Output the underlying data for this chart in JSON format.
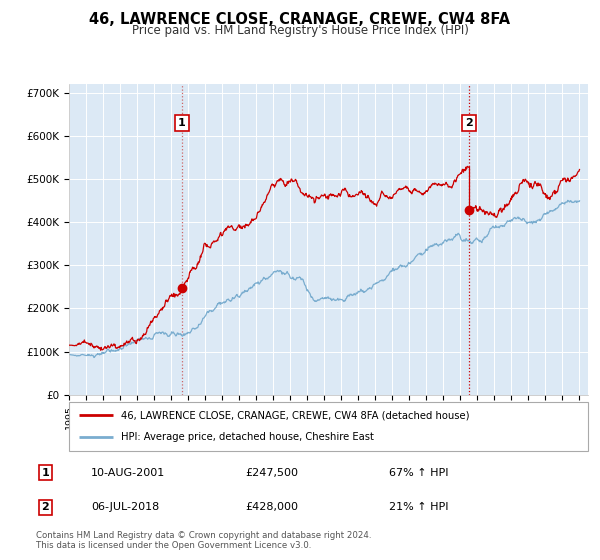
{
  "title": "46, LAWRENCE CLOSE, CRANAGE, CREWE, CW4 8FA",
  "subtitle": "Price paid vs. HM Land Registry's House Price Index (HPI)",
  "legend_line1": "46, LAWRENCE CLOSE, CRANAGE, CREWE, CW4 8FA (detached house)",
  "legend_line2": "HPI: Average price, detached house, Cheshire East",
  "transaction1_date": "10-AUG-2001",
  "transaction1_price": "£247,500",
  "transaction1_hpi": "67% ↑ HPI",
  "transaction2_date": "06-JUL-2018",
  "transaction2_price": "£428,000",
  "transaction2_hpi": "21% ↑ HPI",
  "footer1": "Contains HM Land Registry data © Crown copyright and database right 2024.",
  "footer2": "This data is licensed under the Open Government Licence v3.0.",
  "red_color": "#cc0000",
  "blue_color": "#7aadcf",
  "grid_color": "#ffffff",
  "background_color": "#dce9f5",
  "transaction1_x": 2001.62,
  "transaction2_x": 2018.51,
  "transaction1_y": 247500,
  "transaction2_y": 428000,
  "ylim_max": 720000,
  "yticks": [
    0,
    100000,
    200000,
    300000,
    400000,
    500000,
    600000,
    700000
  ],
  "ytick_labels": [
    "£0",
    "£100K",
    "£200K",
    "£300K",
    "£400K",
    "£500K",
    "£600K",
    "£700K"
  ],
  "xmin": 1995.0,
  "xmax": 2025.5
}
